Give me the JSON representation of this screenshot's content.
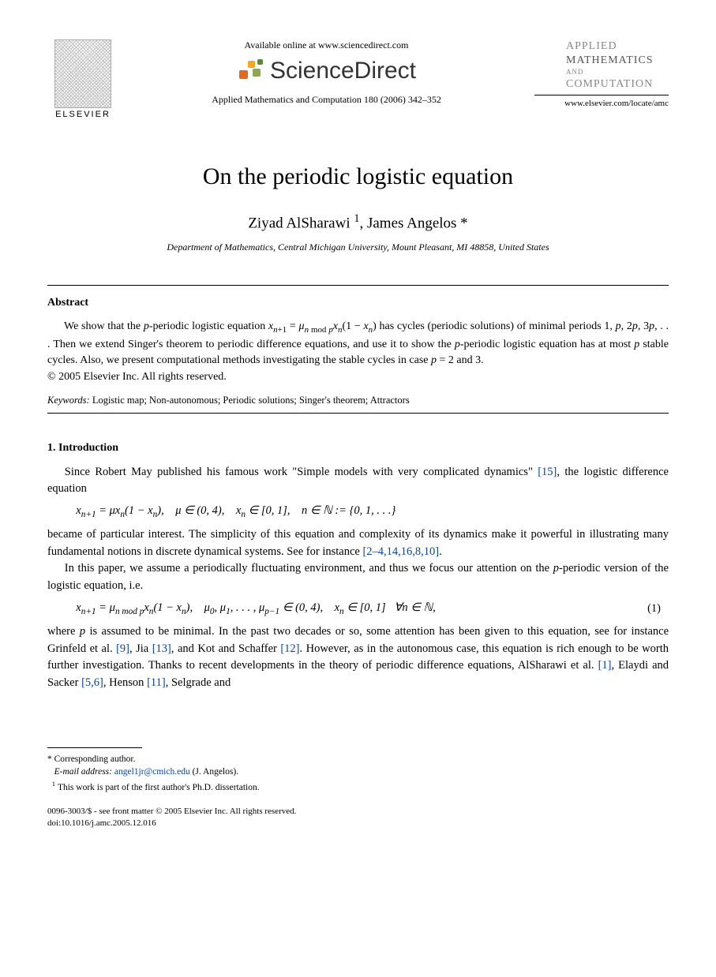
{
  "header": {
    "publisher_label": "ELSEVIER",
    "available_online": "Available online at www.sciencedirect.com",
    "sciencedirect": "ScienceDirect",
    "journal_ref": "Applied Mathematics and Computation 180 (2006) 342–352",
    "journal_logo_line1": "APPLIED",
    "journal_logo_line2": "MATHEMATICS",
    "journal_logo_line3": "AND",
    "journal_logo_line4": "COMPUTATION",
    "locate_url": "www.elsevier.com/locate/amc",
    "sd_icon_colors": [
      "#f5a623",
      "#e06b1f",
      "#8aa84f",
      "#5b8a3a"
    ]
  },
  "title": "On the periodic logistic equation",
  "authors_html": "Ziyad AlSharawi <sup>1</sup>, James Angelos *",
  "affiliation": "Department of Mathematics, Central Michigan University, Mount Pleasant, MI 48858, United States",
  "abstract": {
    "heading": "Abstract",
    "body_html": "We show that the <i>p</i>-periodic logistic equation <i>x</i><sub><i>n</i>+1</sub> = <i>μ</i><sub><i>n</i> mod <i>p</i></sub><i>x</i><sub><i>n</i></sub>(1 − <i>x</i><sub><i>n</i></sub>) has cycles (periodic solutions) of minimal periods 1, <i>p</i>, 2<i>p</i>, 3<i>p</i>, . . . Then we extend Singer's theorem to periodic difference equations, and use it to show the <i>p</i>-periodic logistic equation has at most <i>p</i> stable cycles. Also, we present computational methods investigating the stable cycles in case <i>p</i> = 2 and 3.",
    "copyright": "© 2005 Elsevier Inc. All rights reserved."
  },
  "keywords": {
    "label": "Keywords:",
    "text": "Logistic map; Non-autonomous; Periodic solutions; Singer's theorem; Attractors"
  },
  "intro": {
    "heading": "1. Introduction",
    "p1_html": "Since Robert May published his famous work \"Simple models with very complicated dynamics\" <a class=\"ref-link\" data-name=\"cite-15\" data-interactable=\"true\">[15]</a>, the logistic difference equation",
    "eq1_html": "x<sub>n+1</sub> = μx<sub>n</sub>(1 − x<sub>n</sub>), &nbsp;&nbsp; μ ∈ (0, 4), &nbsp;&nbsp; x<sub>n</sub> ∈ [0, 1], &nbsp;&nbsp; n ∈ ℕ := {0, 1, . . .}",
    "p2_html": "became of particular interest. The simplicity of this equation and complexity of its dynamics make it powerful in illustrating many fundamental notions in discrete dynamical systems. See for instance <a class=\"ref-link\" data-name=\"cite-2-4-14-16-8-10\" data-interactable=\"true\">[2–4,14,16,8,10]</a>.",
    "p3_html": "In this paper, we assume a periodically fluctuating environment, and thus we focus our attention on the <i>p</i>-periodic version of the logistic equation, i.e.",
    "eq2_html": "x<sub>n+1</sub> = μ<sub>n mod p</sub>x<sub>n</sub>(1 − x<sub>n</sub>), &nbsp;&nbsp; μ<sub>0</sub>, μ<sub>1</sub>, . . . , μ<sub>p−1</sub> ∈ (0, 4), &nbsp;&nbsp; x<sub>n</sub> ∈ [0, 1] &nbsp;&nbsp;∀n ∈ ℕ,",
    "eq2_num": "(1)",
    "p4_html": "where <i>p</i> is assumed to be minimal. In the past two decades or so, some attention has been given to this equation, see for instance Grinfeld et al. <a class=\"ref-link\" data-name=\"cite-9\" data-interactable=\"true\">[9]</a>, Jia <a class=\"ref-link\" data-name=\"cite-13\" data-interactable=\"true\">[13]</a>, and Kot and Schaffer <a class=\"ref-link\" data-name=\"cite-12\" data-interactable=\"true\">[12]</a>. However, as in the autonomous case, this equation is rich enough to be worth further investigation. Thanks to recent developments in the theory of periodic difference equations, AlSharawi et al. <a class=\"ref-link\" data-name=\"cite-1\" data-interactable=\"true\">[1]</a>, Elaydi and Sacker <a class=\"ref-link\" data-name=\"cite-5-6\" data-interactable=\"true\">[5,6]</a>, Henson <a class=\"ref-link\" data-name=\"cite-11\" data-interactable=\"true\">[11]</a>, Selgrade and"
  },
  "footnotes": {
    "corr": "* Corresponding author.",
    "email_label": "E-mail address:",
    "email": "angel1jr@cmich.edu",
    "email_tail": "(J. Angelos).",
    "note1": "1  This work is part of the first author's Ph.D. dissertation."
  },
  "bottom": {
    "front_matter": "0096-3003/$ - see front matter © 2005 Elsevier Inc. All rights reserved.",
    "doi": "doi:10.1016/j.amc.2005.12.016"
  }
}
